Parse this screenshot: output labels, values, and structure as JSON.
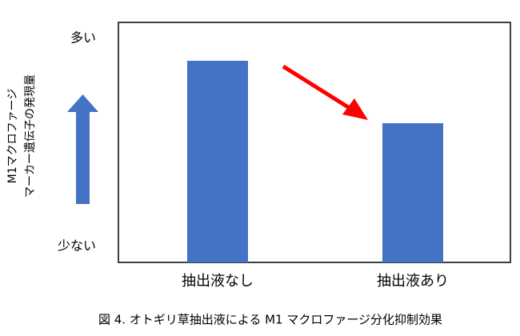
{
  "chart_data": {
    "type": "bar",
    "caption": "図 4. オトギリ草抽出液による M1 マクロファージ分化抑制効果",
    "ylabel": [
      "M1マクロファージ",
      "マーカー遺伝子の発現量"
    ],
    "categories": [
      "抽出液なし",
      "抽出液あり"
    ],
    "values": [
      84,
      58
    ],
    "color": "#4472c4",
    "ylim": [
      0,
      100
    ],
    "yticks": [
      {
        "value": 0,
        "label": "少ない"
      },
      {
        "value": 100,
        "label": "多い"
      }
    ]
  }
}
